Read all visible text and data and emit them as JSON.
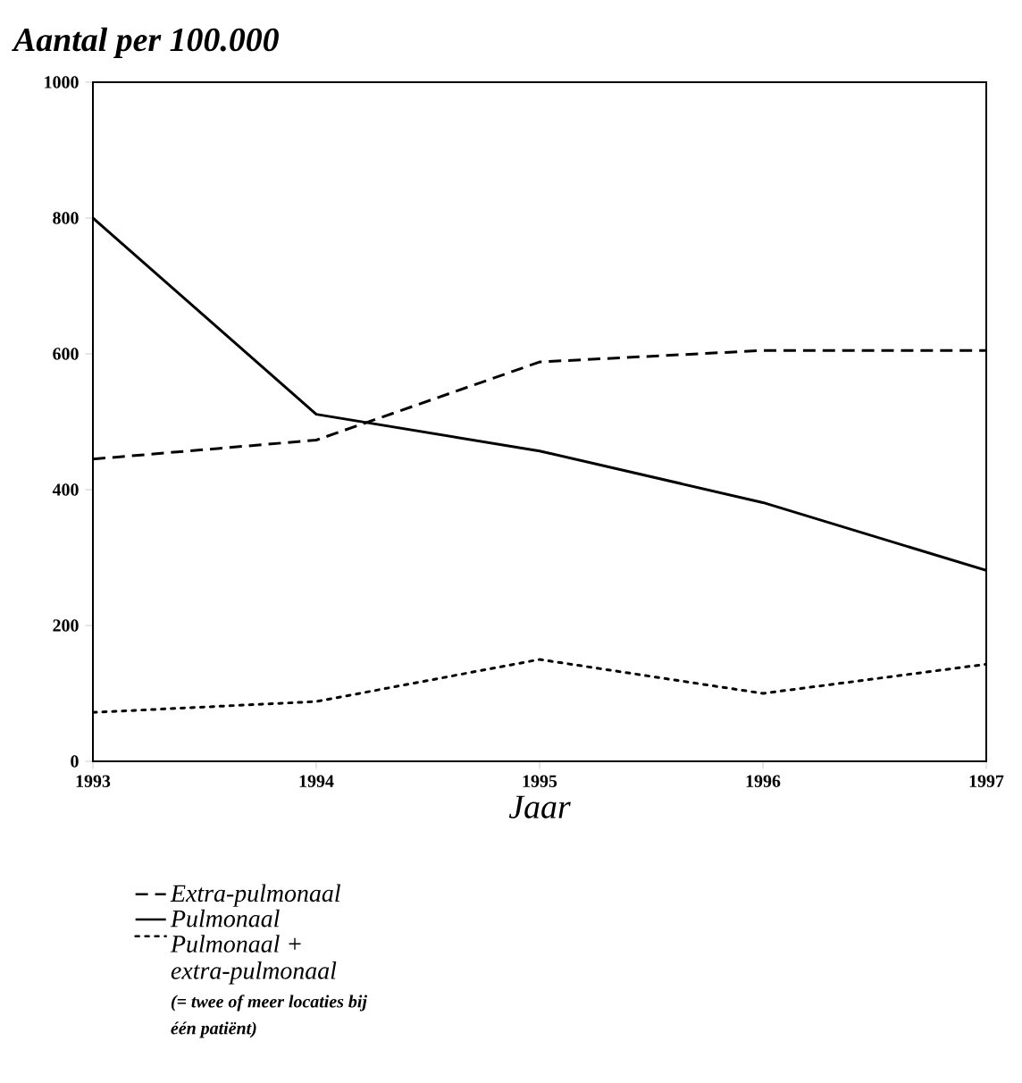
{
  "chart_data": {
    "type": "line",
    "title": "Aantal per 100.000",
    "xlabel": "Jaar",
    "x": [
      1993,
      1994,
      1995,
      1996,
      1997
    ],
    "xlim": [
      1993,
      1997
    ],
    "xticks": [
      1993,
      1994,
      1995,
      1996,
      1997
    ],
    "ylim": [
      0,
      1000
    ],
    "yticks": [
      0,
      200,
      400,
      600,
      800,
      1000
    ],
    "grid": false,
    "legend": "bottom left",
    "marker": "none",
    "series": [
      {
        "name": "Extra-pulmonaal",
        "color": "#000000",
        "line_style": "dashed",
        "values": [
          445,
          473,
          588,
          605,
          605
        ]
      },
      {
        "name": "Pulmonaal",
        "color": "#000000",
        "line_style": "solid",
        "values": [
          800,
          511,
          457,
          381,
          281
        ]
      },
      {
        "name": "Pulmonaal + extra-pulmonaal",
        "color": "#000000",
        "line_style": "dotted",
        "values": [
          72,
          88,
          150,
          100,
          143
        ]
      }
    ],
    "annotations": [
      "(= twee of meer locaties bij één patiënt)"
    ]
  }
}
